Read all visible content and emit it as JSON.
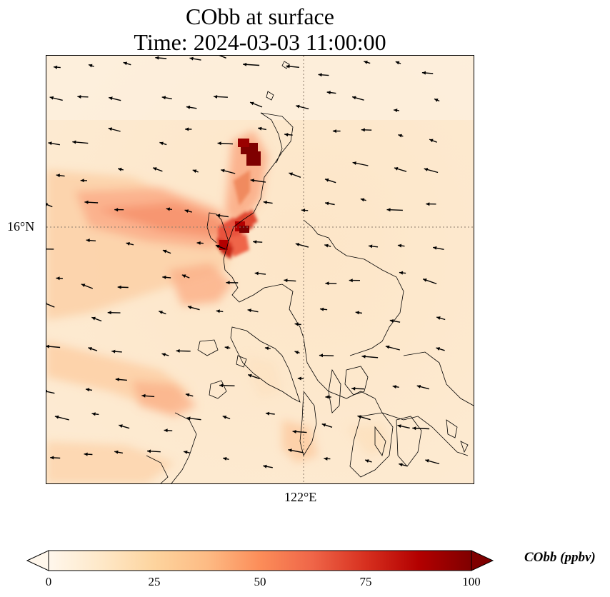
{
  "title": {
    "line1": "CObb at surface",
    "line2": "Time: 2024-03-03 11:00:00"
  },
  "map": {
    "lat_label": "16°N",
    "lon_label": "122°E",
    "gridline_color": "#8a7a6a",
    "coastline_color": "#000000",
    "background_color": "#fdebd0",
    "wind_vector_color": "#000000"
  },
  "colorbar": {
    "label": "CObb (ppbv)",
    "ticks": [
      "0",
      "25",
      "50",
      "75",
      "100"
    ],
    "range": [
      0,
      100
    ],
    "colormap": "OrRd",
    "colors": [
      "#fff7ec",
      "#fee8c8",
      "#fdd49e",
      "#fdbb84",
      "#fc8d59",
      "#ef6548",
      "#d7301f",
      "#b30000",
      "#7f0000"
    ],
    "extend": "both"
  }
}
